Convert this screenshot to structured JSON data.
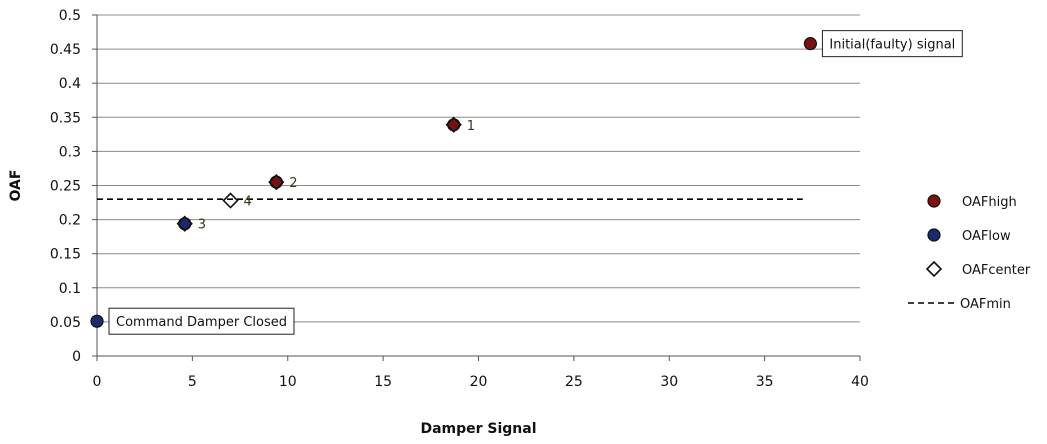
{
  "chart_data": {
    "type": "scatter",
    "xlabel": "Damper Signal",
    "ylabel": "OAF",
    "xlim": [
      0,
      40
    ],
    "ylim": [
      0,
      0.5
    ],
    "xticks": [
      "0",
      "5",
      "10",
      "15",
      "20",
      "25",
      "30",
      "35",
      "40"
    ],
    "yticks": [
      "0",
      "0.05",
      "0.1",
      "0.15",
      "0.2",
      "0.25",
      "0.3",
      "0.35",
      "0.4",
      "0.45",
      "0.5"
    ],
    "grid": "horizontal",
    "legend_position": "right",
    "series": [
      {
        "name": "OAFhigh",
        "marker": "circle",
        "color": "#7a1010",
        "points": [
          {
            "x": 37.4,
            "y": 0.458
          },
          {
            "x": 18.7,
            "y": 0.339
          },
          {
            "x": 9.4,
            "y": 0.255
          }
        ]
      },
      {
        "name": "OAFlow",
        "marker": "circle",
        "color": "#1a2b6b",
        "points": [
          {
            "x": 0,
            "y": 0.051
          },
          {
            "x": 4.6,
            "y": 0.194
          }
        ]
      },
      {
        "name": "OAFcenter",
        "marker": "diamond",
        "color": "#ffffff",
        "points": [
          {
            "x": 18.7,
            "y": 0.339
          },
          {
            "x": 9.4,
            "y": 0.255
          },
          {
            "x": 4.6,
            "y": 0.194
          },
          {
            "x": 7.0,
            "y": 0.228
          }
        ]
      },
      {
        "name": "OAFmin",
        "marker": "dashed-line",
        "color": "#000000",
        "points": [
          {
            "x": 0,
            "y": 0.23
          },
          {
            "x": 37,
            "y": 0.23
          }
        ]
      }
    ],
    "point_labels": [
      {
        "text": "1",
        "x": 18.7,
        "y": 0.339
      },
      {
        "text": "2",
        "x": 9.4,
        "y": 0.255
      },
      {
        "text": "3",
        "x": 4.6,
        "y": 0.194
      },
      {
        "text": "4",
        "x": 7.0,
        "y": 0.228
      }
    ],
    "annotations": [
      {
        "text": "Initial(faulty) signal",
        "x": 37.4,
        "y": 0.458
      },
      {
        "text": "Command Damper Closed",
        "x": 0,
        "y": 0.051
      }
    ]
  }
}
